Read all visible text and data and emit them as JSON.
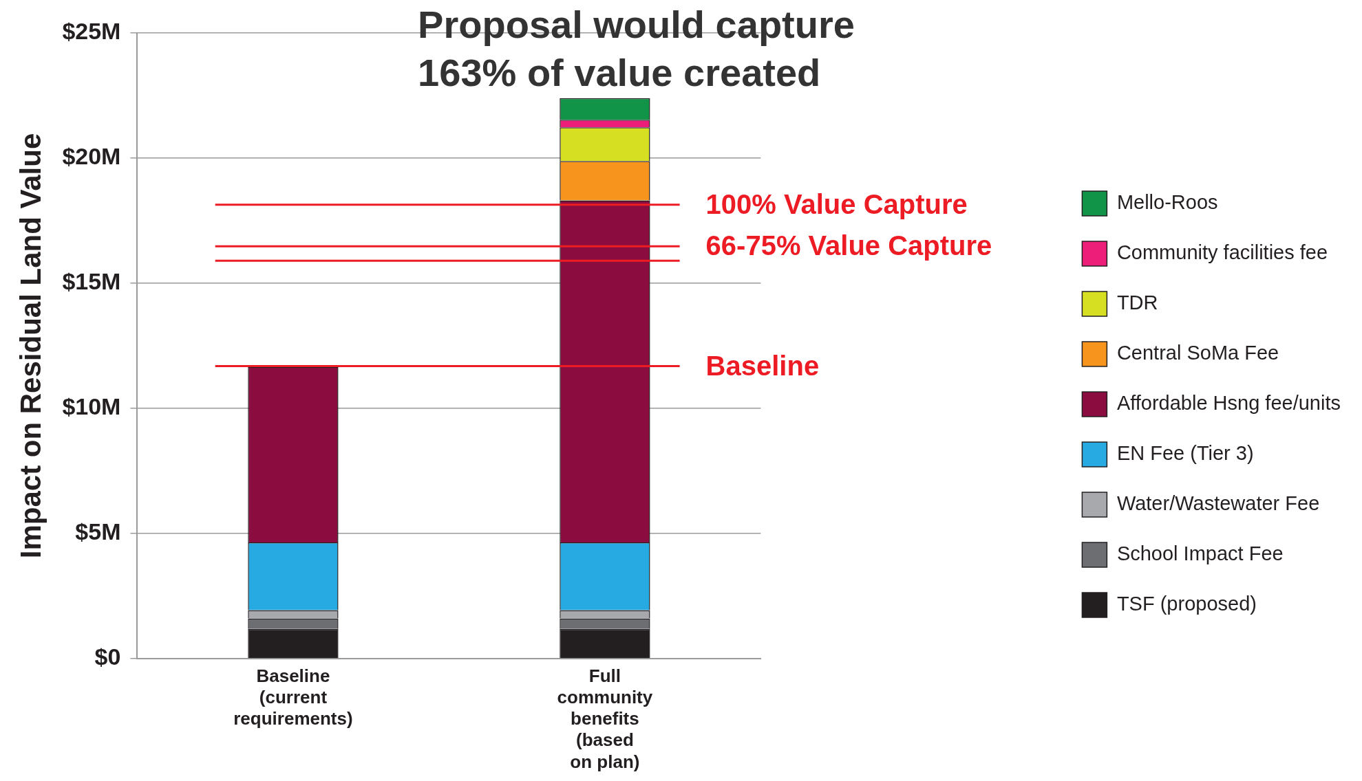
{
  "chart_data": {
    "type": "bar",
    "stacked": true,
    "title": "Proposal would capture\n163% of value created",
    "ylabel": "Impact on Residual Land Value",
    "categories": [
      "Baseline\n(current\nrequirements)",
      "Full\ncommunity\nbenefits\n(based\non plan)"
    ],
    "series": [
      {
        "name": "TSF (proposed)",
        "color": "#231f20",
        "values": [
          1.19,
          1.19
        ]
      },
      {
        "name": "School Impact Fee",
        "color": "#6d6e71",
        "values": [
          0.42,
          0.42
        ]
      },
      {
        "name": "Water/Wastewater Fee",
        "color": "#a7a9ac",
        "values": [
          0.33,
          0.33
        ]
      },
      {
        "name": "EN Fee (Tier 3)",
        "color": "#27aae1",
        "values": [
          2.7,
          2.7
        ]
      },
      {
        "name": "Affordable Hsng fee/units",
        "color": "#8b0c3f",
        "values": [
          7.02,
          13.67
        ]
      },
      {
        "name": "Central SoMa Fee",
        "color": "#f7941d",
        "values": [
          null,
          1.57
        ]
      },
      {
        "name": "TDR",
        "color": "#d7df23",
        "values": [
          null,
          1.35
        ]
      },
      {
        "name": "Community facilities fee",
        "color": "#ed1e79",
        "values": [
          null,
          0.3
        ]
      },
      {
        "name": "Mello-Roos",
        "color": "#119447",
        "values": [
          null,
          0.87
        ]
      }
    ],
    "ylim": [
      0,
      25
    ],
    "yticks": [
      {
        "value": 0,
        "label": "$0"
      },
      {
        "value": 5,
        "label": "$5M"
      },
      {
        "value": 10,
        "label": "$10M"
      },
      {
        "value": 15,
        "label": "$15M"
      },
      {
        "value": 20,
        "label": "$20M"
      },
      {
        "value": 25,
        "label": "$25M"
      }
    ],
    "grid": "y",
    "legend": "right",
    "ref_lines": [
      {
        "axis": "y",
        "value": 18.14,
        "label": "100% Value Capture",
        "color": "#ed1c24"
      },
      {
        "axis": "y",
        "value": 16.48,
        "label": "66-75% Value Capture",
        "color": "#ed1c24"
      },
      {
        "axis": "y",
        "value": 15.9,
        "color": "#ed1c24"
      },
      {
        "axis": "y",
        "value": 11.69,
        "label": "Baseline",
        "color": "#ed1c24"
      }
    ]
  }
}
